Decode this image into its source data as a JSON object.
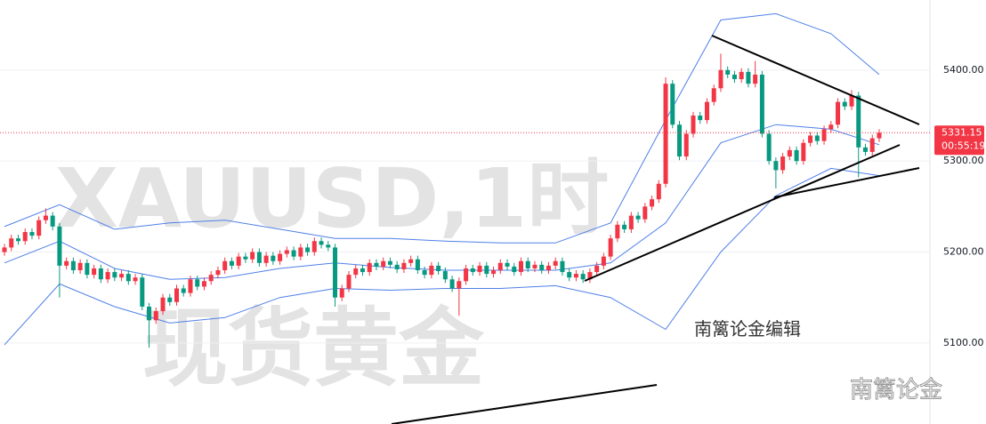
{
  "chart_data": {
    "type": "candlestick",
    "watermark_symbol": "XAUUSD,1时",
    "watermark_name": "现货黄金",
    "annotation": "南篱论金编辑",
    "brand": "南篱论金",
    "last_price": 5331.15,
    "last_price_label": "5331.15",
    "countdown": "00:55:19",
    "ylim": [
      5011,
      5477
    ],
    "yticks": [
      {
        "value": 5100,
        "label": "5100.00"
      },
      {
        "value": 5200,
        "label": "5200.00"
      },
      {
        "value": 5300,
        "label": "5300.00"
      },
      {
        "value": 5400,
        "label": "5400.00"
      }
    ],
    "grid": true,
    "up_color": "#f23645",
    "down_color": "#089981",
    "open": [
      5200,
      5205,
      5215,
      5212,
      5222,
      5218,
      5235,
      5240,
      5228,
      5185,
      5190,
      5180,
      5188,
      5175,
      5182,
      5170,
      5178,
      5172,
      5176,
      5168,
      5172,
      5140,
      5125,
      5135,
      5150,
      5145,
      5160,
      5155,
      5170,
      5162,
      5168,
      5175,
      5180,
      5190,
      5185,
      5195,
      5192,
      5200,
      5188,
      5196,
      5190,
      5198,
      5202,
      5195,
      5205,
      5200,
      5212,
      5208,
      5205,
      5150,
      5160,
      5175,
      5182,
      5178,
      5188,
      5184,
      5190,
      5186,
      5181,
      5188,
      5192,
      5180,
      5175,
      5185,
      5179,
      5170,
      5160,
      5168,
      5182,
      5178,
      5185,
      5176,
      5180,
      5188,
      5184,
      5178,
      5190,
      5182,
      5186,
      5180,
      5185,
      5190,
      5178,
      5172,
      5176,
      5170,
      5178,
      5185,
      5195,
      5215,
      5230,
      5225,
      5240,
      5236,
      5250,
      5258,
      5275,
      5385,
      5340,
      5305,
      5330,
      5350,
      5345,
      5365,
      5380,
      5400,
      5395,
      5390,
      5398,
      5385,
      5395,
      5330,
      5300,
      5290,
      5305,
      5312,
      5300,
      5320,
      5328,
      5322,
      5335,
      5340,
      5365,
      5360,
      5372,
      5315,
      5310,
      5325
    ],
    "high": [
      5209,
      5219,
      5219,
      5226,
      5226,
      5239,
      5248,
      5244,
      5232,
      5194,
      5194,
      5192,
      5192,
      5186,
      5186,
      5182,
      5182,
      5180,
      5180,
      5176,
      5176,
      5144,
      5139,
      5154,
      5154,
      5164,
      5164,
      5174,
      5174,
      5172,
      5179,
      5184,
      5194,
      5194,
      5199,
      5199,
      5204,
      5204,
      5200,
      5200,
      5202,
      5206,
      5206,
      5209,
      5209,
      5216,
      5216,
      5212,
      5209,
      5164,
      5179,
      5186,
      5186,
      5192,
      5192,
      5194,
      5194,
      5190,
      5192,
      5196,
      5196,
      5184,
      5189,
      5189,
      5183,
      5174,
      5172,
      5186,
      5186,
      5189,
      5189,
      5184,
      5192,
      5192,
      5188,
      5194,
      5194,
      5190,
      5190,
      5189,
      5194,
      5194,
      5182,
      5180,
      5180,
      5182,
      5189,
      5199,
      5219,
      5234,
      5234,
      5244,
      5244,
      5254,
      5262,
      5279,
      5392,
      5389,
      5344,
      5334,
      5354,
      5354,
      5369,
      5384,
      5418,
      5404,
      5399,
      5402,
      5402,
      5410,
      5399,
      5334,
      5304,
      5309,
      5316,
      5316,
      5324,
      5332,
      5332,
      5339,
      5344,
      5369,
      5369,
      5378,
      5376,
      5319,
      5329,
      5335
    ],
    "low": [
      5196,
      5201,
      5208,
      5208,
      5214,
      5214,
      5231,
      5224,
      5150,
      5181,
      5176,
      5176,
      5171,
      5171,
      5166,
      5166,
      5168,
      5168,
      5164,
      5164,
      5136,
      5095,
      5121,
      5131,
      5141,
      5141,
      5151,
      5151,
      5158,
      5158,
      5164,
      5171,
      5176,
      5181,
      5181,
      5188,
      5188,
      5184,
      5184,
      5186,
      5186,
      5194,
      5191,
      5191,
      5196,
      5196,
      5204,
      5201,
      5140,
      5146,
      5156,
      5171,
      5174,
      5174,
      5180,
      5180,
      5182,
      5177,
      5177,
      5184,
      5176,
      5171,
      5171,
      5175,
      5166,
      5156,
      5130,
      5164,
      5174,
      5174,
      5172,
      5172,
      5176,
      5180,
      5174,
      5174,
      5178,
      5178,
      5176,
      5176,
      5181,
      5174,
      5168,
      5168,
      5166,
      5166,
      5174,
      5181,
      5191,
      5211,
      5221,
      5221,
      5232,
      5232,
      5246,
      5254,
      5271,
      5336,
      5301,
      5301,
      5326,
      5341,
      5341,
      5361,
      5376,
      5391,
      5386,
      5386,
      5381,
      5381,
      5326,
      5296,
      5270,
      5286,
      5301,
      5296,
      5296,
      5316,
      5318,
      5318,
      5331,
      5336,
      5356,
      5356,
      5282,
      5306,
      5306,
      5321
    ],
    "close": [
      5205,
      5215,
      5212,
      5222,
      5218,
      5235,
      5240,
      5228,
      5185,
      5190,
      5180,
      5188,
      5175,
      5182,
      5170,
      5178,
      5172,
      5176,
      5168,
      5172,
      5140,
      5125,
      5135,
      5150,
      5145,
      5160,
      5155,
      5170,
      5162,
      5168,
      5175,
      5180,
      5190,
      5185,
      5195,
      5192,
      5200,
      5188,
      5196,
      5190,
      5198,
      5202,
      5195,
      5205,
      5200,
      5212,
      5208,
      5205,
      5150,
      5160,
      5175,
      5182,
      5178,
      5188,
      5184,
      5190,
      5186,
      5181,
      5188,
      5192,
      5180,
      5175,
      5185,
      5179,
      5170,
      5160,
      5168,
      5182,
      5178,
      5185,
      5176,
      5180,
      5188,
      5184,
      5178,
      5190,
      5182,
      5186,
      5180,
      5185,
      5190,
      5178,
      5172,
      5176,
      5170,
      5178,
      5185,
      5195,
      5215,
      5230,
      5225,
      5240,
      5236,
      5250,
      5258,
      5275,
      5385,
      5340,
      5305,
      5330,
      5350,
      5345,
      5365,
      5380,
      5400,
      5395,
      5390,
      5398,
      5385,
      5395,
      5330,
      5300,
      5290,
      5305,
      5312,
      5300,
      5320,
      5328,
      5322,
      5335,
      5340,
      5365,
      5360,
      5372,
      5315,
      5310,
      5325,
      5331.15
    ],
    "bands": {
      "color": "#4f7fe8",
      "x": [
        0,
        8,
        16,
        24,
        32,
        40,
        48,
        56,
        64,
        72,
        80,
        88,
        96,
        104,
        112,
        120,
        127
      ],
      "upper": [
        5228,
        5252,
        5225,
        5232,
        5235,
        5225,
        5215,
        5215,
        5212,
        5210,
        5210,
        5232,
        5345,
        5455,
        5462,
        5440,
        5395
      ],
      "middle": [
        5188,
        5212,
        5182,
        5170,
        5172,
        5182,
        5188,
        5183,
        5180,
        5180,
        5180,
        5188,
        5232,
        5320,
        5340,
        5335,
        5318
      ],
      "lower": [
        5098,
        5165,
        5140,
        5122,
        5128,
        5150,
        5160,
        5158,
        5160,
        5160,
        5163,
        5150,
        5115,
        5200,
        5262,
        5292,
        5284
      ]
    }
  }
}
